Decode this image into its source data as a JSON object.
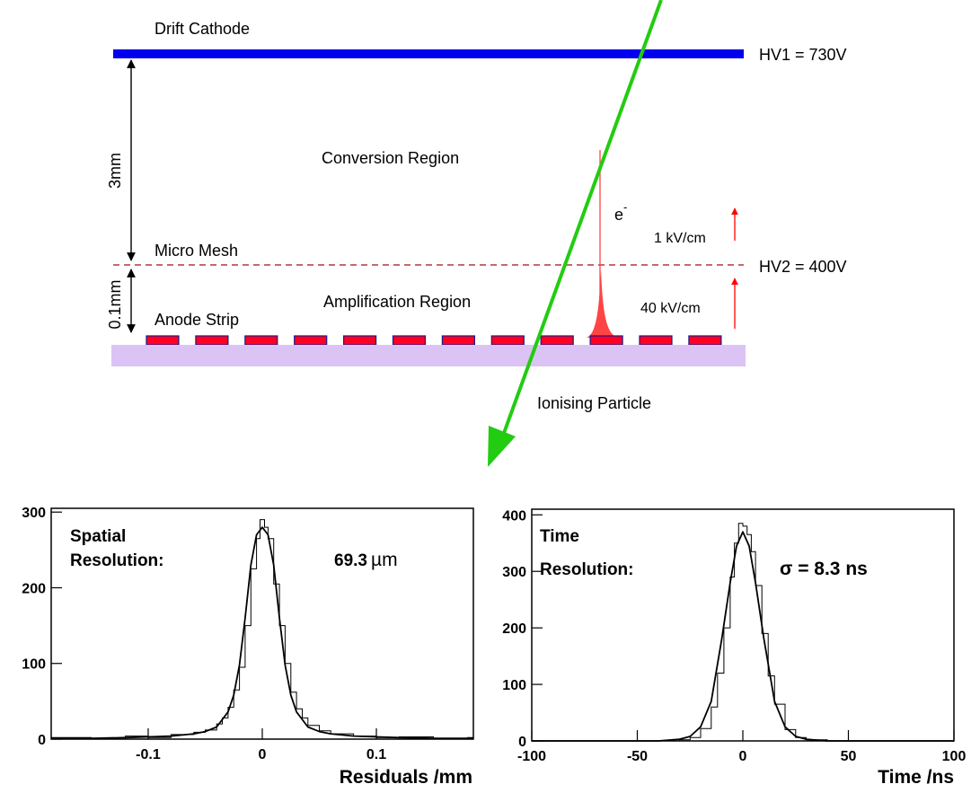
{
  "diagram": {
    "drift_cathode": "Drift Cathode",
    "hv1": "HV1 = 730V",
    "gap_drift": "3mm",
    "conversion_region": "Conversion Region",
    "electron": "e",
    "electron_sup": "-",
    "field_drift": "1 kV/cm",
    "micro_mesh": "Micro Mesh",
    "hv2": "HV2 = 400V",
    "gap_amp": "0.1mm",
    "amplification_region": "Amplification Region",
    "field_amp": "40 kV/cm",
    "anode_strip": "Anode Strip",
    "ionising_particle": "Ionising Particle",
    "strip_count": 12,
    "colors": {
      "cathode": "#0000ee",
      "strip": "#ff0022",
      "strip_border": "#1b1b8a",
      "substrate": "#dcc3f5",
      "track": "#22cc11",
      "field_arrow": "#ff0000",
      "mesh": "#a01010",
      "avalanche": "#ff4444"
    }
  },
  "chart_data": [
    {
      "type": "line",
      "annotation_line1": "Spatial",
      "annotation_line2": "Resolution:",
      "resolution_value": "69.3",
      "resolution_unit": "µm",
      "xlabel": "Residuals /mm",
      "ylabel": "",
      "xlim": [
        -0.185,
        0.185
      ],
      "ylim": [
        0,
        305
      ],
      "xticks": [
        -0.1,
        0,
        0.1
      ],
      "xtick_labels": [
        "-0.1",
        "0",
        "0.1"
      ],
      "yticks": [
        0,
        100,
        200,
        300
      ],
      "ytick_labels": [
        "0",
        "100",
        "200",
        "300"
      ],
      "series": [
        {
          "style": "fit",
          "x": [
            -0.185,
            -0.15,
            -0.12,
            -0.1,
            -0.08,
            -0.06,
            -0.05,
            -0.04,
            -0.03,
            -0.025,
            -0.02,
            -0.015,
            -0.01,
            -0.005,
            0,
            0.005,
            0.01,
            0.015,
            0.02,
            0.025,
            0.03,
            0.04,
            0.05,
            0.06,
            0.08,
            0.1,
            0.12,
            0.15,
            0.185
          ],
          "y": [
            1,
            1,
            2,
            3,
            4,
            7,
            10,
            16,
            36,
            58,
            98,
            160,
            230,
            270,
            280,
            270,
            230,
            160,
            98,
            58,
            36,
            16,
            10,
            7,
            4,
            3,
            2,
            1,
            1
          ]
        },
        {
          "style": "histogram",
          "x": [
            -0.185,
            -0.15,
            -0.12,
            -0.1,
            -0.08,
            -0.06,
            -0.05,
            -0.04,
            -0.035,
            -0.03,
            -0.025,
            -0.02,
            -0.015,
            -0.01,
            -0.005,
            -0.002,
            0.002,
            0.005,
            0.01,
            0.015,
            0.02,
            0.025,
            0.03,
            0.035,
            0.04,
            0.05,
            0.06,
            0.08,
            0.1,
            0.12,
            0.15,
            0.18
          ],
          "y": [
            2,
            0,
            4,
            2,
            6,
            9,
            12,
            20,
            28,
            42,
            65,
            95,
            150,
            225,
            265,
            290,
            280,
            265,
            205,
            150,
            100,
            62,
            40,
            28,
            18,
            11,
            7,
            4,
            2,
            3,
            1,
            2
          ]
        }
      ]
    },
    {
      "type": "line",
      "annotation_line1": "Time",
      "annotation_line2": "Resolution:",
      "resolution_value": "σ = 8.3 ns",
      "xlabel": "Time /ns",
      "ylabel": "",
      "xlim": [
        -100,
        100
      ],
      "ylim": [
        0,
        410
      ],
      "xticks": [
        -100,
        -50,
        0,
        50,
        100
      ],
      "xtick_labels": [
        "-100",
        "-50",
        "0",
        "50",
        "100"
      ],
      "yticks": [
        0,
        100,
        200,
        300,
        400
      ],
      "ytick_labels": [
        "0",
        "100",
        "200",
        "300",
        "400"
      ],
      "series": [
        {
          "style": "fit",
          "x": [
            -100,
            -40,
            -30,
            -25,
            -20,
            -15,
            -10,
            -6,
            -3,
            0,
            3,
            6,
            10,
            15,
            20,
            25,
            30,
            40,
            100
          ],
          "y": [
            0,
            0,
            3,
            8,
            25,
            70,
            180,
            280,
            345,
            370,
            345,
            280,
            180,
            70,
            25,
            8,
            3,
            0,
            0
          ]
        },
        {
          "style": "histogram",
          "x": [
            -100,
            -30,
            -25,
            -20,
            -15,
            -12,
            -9,
            -6,
            -4,
            -2,
            0,
            2,
            4,
            6,
            9,
            12,
            15,
            20,
            25,
            30,
            40,
            100
          ],
          "y": [
            0,
            2,
            6,
            22,
            60,
            120,
            200,
            290,
            350,
            385,
            380,
            365,
            335,
            275,
            190,
            115,
            65,
            20,
            6,
            2,
            0,
            0
          ]
        }
      ]
    }
  ]
}
